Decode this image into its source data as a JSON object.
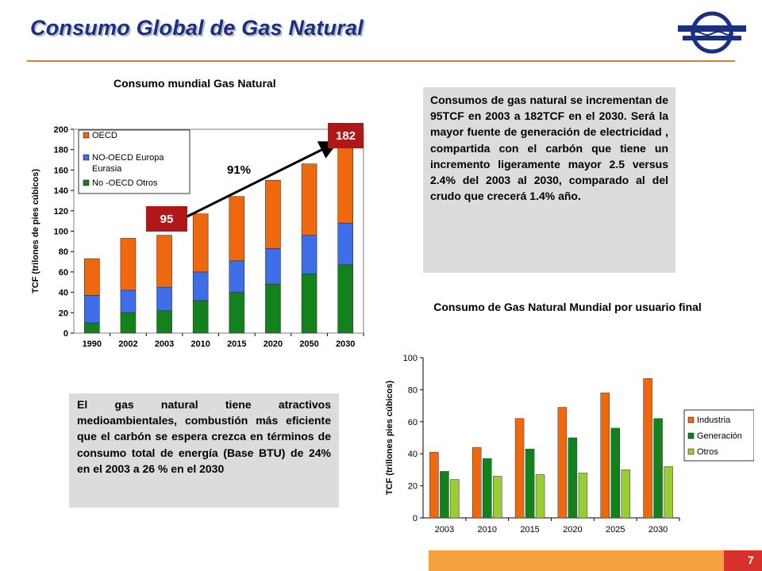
{
  "page": {
    "title": "Consumo Global de Gas Natural",
    "page_number": "7",
    "colors": {
      "title": "#1a2f80",
      "rule": "#e07a30",
      "footer": "#f3a23e",
      "footer_box": "#d8302a",
      "callout": "#b01818"
    }
  },
  "textbox_right": "Consumos de gas natural se incrementan de 95TCF en 2003 a 182TCF en el 2030. Será la mayor fuente de generación de electricidad , compartida con el carbón que tiene un incremento ligeramente mayor 2.5 versus 2.4% del 2003 al 2030, comparado al del crudo que crecerá 1.4% año.",
  "textbox_left": "El gas natural tiene atractivos medioambientales, combustión más eficiente que el carbón se espera crezca en términos de consumo total de energía (Base BTU) de 24% en el 2003 a 26 % en el 2030",
  "annotations": {
    "callout_high": "182",
    "callout_low": "95",
    "growth": "91%"
  },
  "chart_data": [
    {
      "type": "bar",
      "stacked": true,
      "title": "Consumo mundial Gas Natural",
      "xlabel": "",
      "ylabel": "TCF (trilones de pies cúbicos)",
      "ylim": [
        0,
        200
      ],
      "yticks": [
        0,
        20,
        40,
        60,
        80,
        100,
        120,
        140,
        160,
        180,
        200
      ],
      "grid": false,
      "legend_position": "top-left",
      "categories": [
        "1990",
        "2002",
        "2003",
        "2010",
        "2015",
        "2020",
        "2050",
        "2030"
      ],
      "series": [
        {
          "name": "No -OECD Otros",
          "color": "#13821c",
          "values": [
            10,
            20,
            22,
            32,
            40,
            48,
            58,
            67
          ]
        },
        {
          "name": "NO-OECD Europa Eurasia",
          "color": "#3d6ee8",
          "values": [
            27,
            22,
            23,
            28,
            31,
            35,
            38,
            41
          ]
        },
        {
          "name": "OECD",
          "color": "#f0680e",
          "values": [
            36,
            51,
            51,
            57,
            63,
            67,
            70,
            74
          ]
        }
      ]
    },
    {
      "type": "bar",
      "stacked": false,
      "title": "Consumo de Gas Natural Mundial por usuario final",
      "xlabel": "",
      "ylabel": "TCF (trillones pies cúbicos)",
      "ylim": [
        0,
        100
      ],
      "yticks": [
        0,
        20,
        40,
        60,
        80,
        100
      ],
      "grid": false,
      "legend_position": "right",
      "categories": [
        "2003",
        "2010",
        "2015",
        "2020",
        "2025",
        "2030"
      ],
      "series": [
        {
          "name": "Industria",
          "color": "#f0680e",
          "values": [
            41,
            44,
            62,
            69,
            78,
            87
          ]
        },
        {
          "name": "Generación",
          "color": "#13821c",
          "values": [
            29,
            37,
            43,
            50,
            56,
            62
          ]
        },
        {
          "name": "Otros",
          "color": "#9acd32",
          "values": [
            24,
            26,
            27,
            28,
            30,
            32
          ]
        }
      ]
    }
  ]
}
